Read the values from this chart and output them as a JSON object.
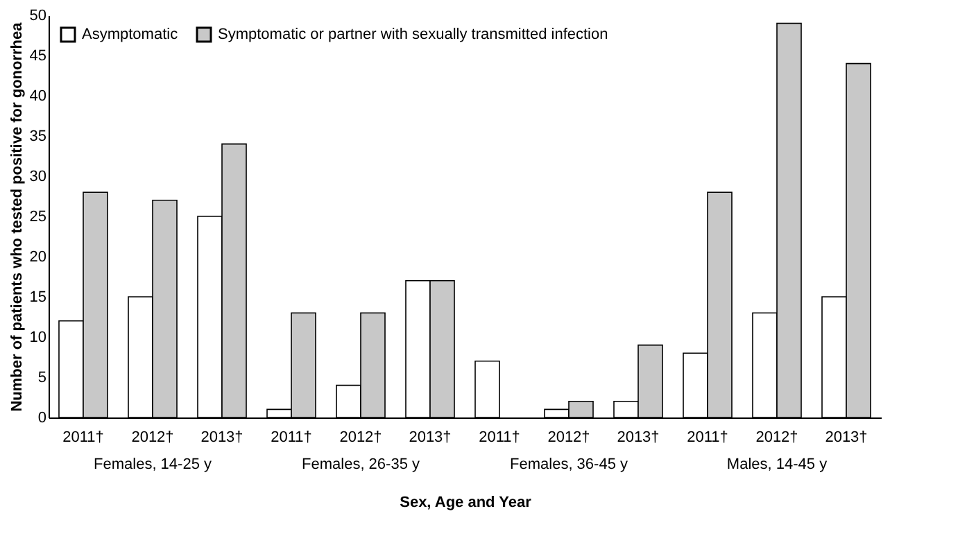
{
  "chart_data": {
    "type": "bar",
    "xlabel": "Sex, Age and Year",
    "ylabel": "Number of patients who tested positive for gonorrhea",
    "categories": [
      "2011†",
      "2012†",
      "2013†",
      "2011†",
      "2012†",
      "2013†",
      "2011†",
      "2012†",
      "2013†",
      "2011†",
      "2012†",
      "2013†"
    ],
    "series": [
      {
        "name": "Asymptomatic",
        "color": "#ffffff",
        "values": [
          12,
          15,
          25,
          1,
          4,
          17,
          7,
          1,
          2,
          8,
          13,
          15
        ]
      },
      {
        "name": "Symptomatic or partner with sexually transmitted infection",
        "color": "#c8c8c8",
        "values": [
          28,
          27,
          34,
          13,
          13,
          17,
          null,
          2,
          9,
          28,
          49,
          44
        ]
      }
    ],
    "annotations": [
      "Females, 14-25 y",
      "Females, 26-35 y",
      "Females, 36-45 y",
      "Males, 14-45 y"
    ],
    "ylim": [
      0,
      50
    ],
    "yticks": [
      0,
      5,
      10,
      15,
      20,
      25,
      30,
      35,
      40,
      45,
      50
    ],
    "grid": false,
    "legend": "top left"
  }
}
